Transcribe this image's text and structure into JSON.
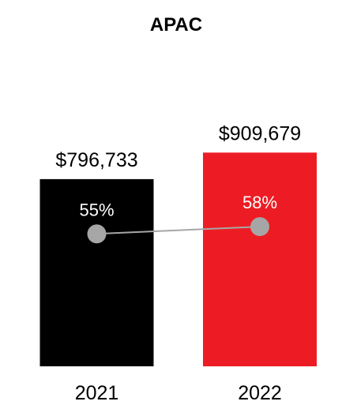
{
  "chart_data": {
    "type": "bar",
    "title": "APAC",
    "categories": [
      "2021",
      "2022"
    ],
    "series": [
      {
        "values": [
          796733,
          909679
        ],
        "value_labels": [
          "$796,733",
          "$909,679"
        ],
        "colors": [
          "#000000",
          "#ed1c24"
        ]
      },
      {
        "type": "line",
        "values": [
          55,
          58
        ],
        "value_labels": [
          "55%",
          "58%"
        ],
        "color": "#a6a6a6"
      }
    ],
    "xlabel": "",
    "ylabel": "",
    "ylim": [
      0,
      1250000
    ],
    "line_ylim": [
      0,
      100
    ],
    "grid": false,
    "legend": "none"
  }
}
